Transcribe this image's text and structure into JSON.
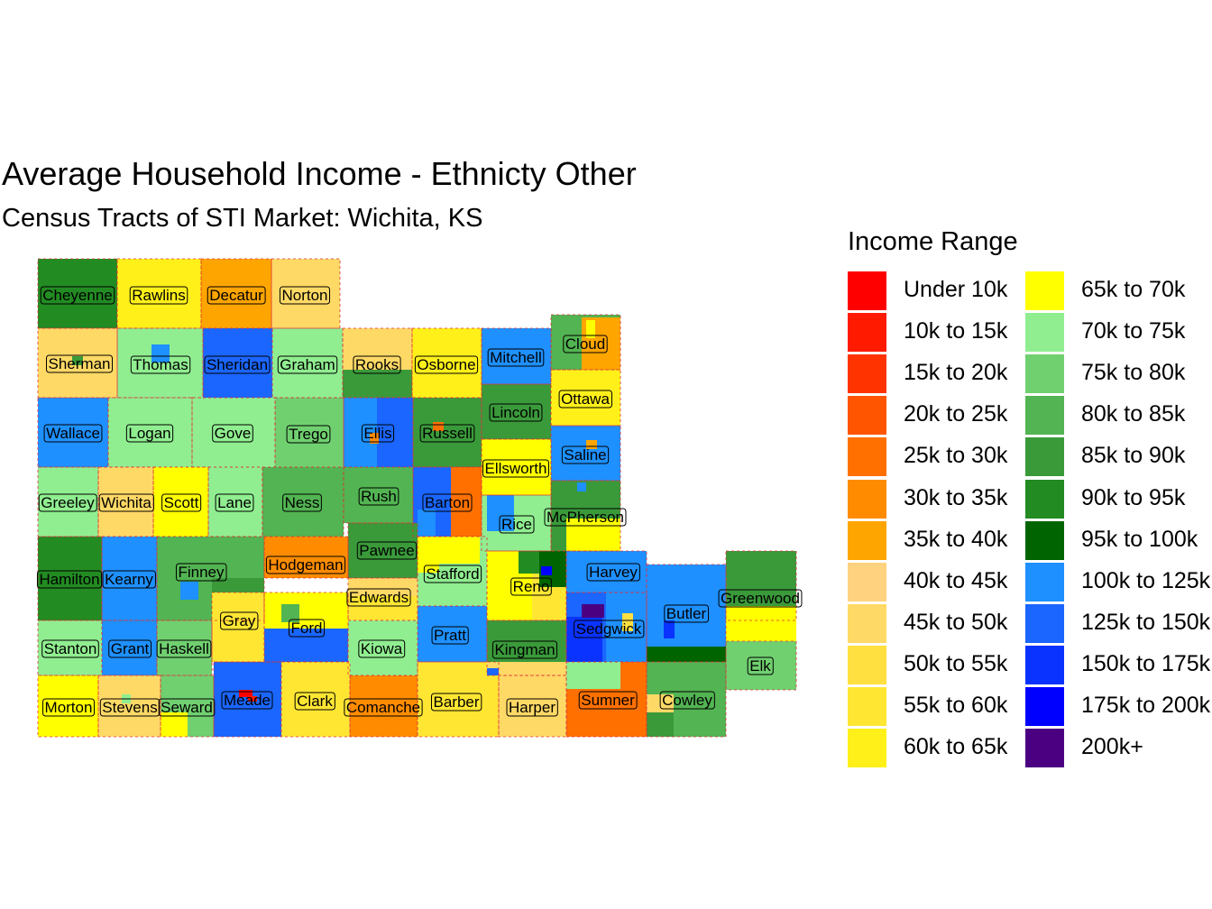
{
  "title": "Average Household Income - Ethnicty Other",
  "subtitle": "Census Tracts of STI Market: Wichita, KS",
  "legend": {
    "title": "Income Range",
    "items": [
      {
        "label": "Under 10k",
        "color": "#FF0000"
      },
      {
        "label": "10k to 15k",
        "color": "#FF1A00"
      },
      {
        "label": "15k to 20k",
        "color": "#FF3300"
      },
      {
        "label": "20k to 25k",
        "color": "#FF5500"
      },
      {
        "label": "25k to 30k",
        "color": "#FF7000"
      },
      {
        "label": "30k to 35k",
        "color": "#FF8C00"
      },
      {
        "label": "35k to 40k",
        "color": "#FFA500"
      },
      {
        "label": "40k to 45k",
        "color": "#FFD27F"
      },
      {
        "label": "45k to 50k",
        "color": "#FFD966"
      },
      {
        "label": "50k to 55k",
        "color": "#FFE040"
      },
      {
        "label": "55k to 60k",
        "color": "#FFE633"
      },
      {
        "label": "60k to 65k",
        "color": "#FFF01A"
      },
      {
        "label": "65k to 70k",
        "color": "#FFFF00"
      },
      {
        "label": "70k to 75k",
        "color": "#90EE90"
      },
      {
        "label": "75k to 80k",
        "color": "#70D070"
      },
      {
        "label": "80k to 85k",
        "color": "#52B452"
      },
      {
        "label": "85k to 90k",
        "color": "#3A9A3A"
      },
      {
        "label": "90k to 95k",
        "color": "#228B22"
      },
      {
        "label": "95k to 100k",
        "color": "#006400"
      },
      {
        "label": "100k to 125k",
        "color": "#1E90FF"
      },
      {
        "label": "125k to 150k",
        "color": "#1A66FF"
      },
      {
        "label": "150k to 175k",
        "color": "#0A33FF"
      },
      {
        "label": "175k to 200k",
        "color": "#0000FF"
      },
      {
        "label": "200k+",
        "color": "#4B0082"
      }
    ]
  },
  "counties": [
    {
      "name": "Cheyenne",
      "color": "#228B22"
    },
    {
      "name": "Rawlins",
      "color": "#FFF01A"
    },
    {
      "name": "Decatur",
      "color": "#FFA500"
    },
    {
      "name": "Norton",
      "color": "#FFD966"
    },
    {
      "name": "Sherman",
      "color": "#FFD966"
    },
    {
      "name": "Thomas",
      "color": "#90EE90"
    },
    {
      "name": "Sheridan",
      "color": "#1A66FF"
    },
    {
      "name": "Graham",
      "color": "#90EE90"
    },
    {
      "name": "Rooks",
      "color": "#FFD966"
    },
    {
      "name": "Osborne",
      "color": "#FFF01A"
    },
    {
      "name": "Mitchell",
      "color": "#1E90FF"
    },
    {
      "name": "Cloud",
      "color": "#52B452"
    },
    {
      "name": "Wallace",
      "color": "#1E90FF"
    },
    {
      "name": "Logan",
      "color": "#90EE90"
    },
    {
      "name": "Gove",
      "color": "#90EE90"
    },
    {
      "name": "Trego",
      "color": "#70D070"
    },
    {
      "name": "Ellis",
      "color": "#1E90FF"
    },
    {
      "name": "Russell",
      "color": "#3A9A3A"
    },
    {
      "name": "Lincoln",
      "color": "#3A9A3A"
    },
    {
      "name": "Ottawa",
      "color": "#FFF01A"
    },
    {
      "name": "Ellsworth",
      "color": "#FFFF00"
    },
    {
      "name": "Saline",
      "color": "#1E90FF"
    },
    {
      "name": "Greeley",
      "color": "#90EE90"
    },
    {
      "name": "Wichita",
      "color": "#FFD966"
    },
    {
      "name": "Scott",
      "color": "#FFFF00"
    },
    {
      "name": "Lane",
      "color": "#90EE90"
    },
    {
      "name": "Ness",
      "color": "#52B452"
    },
    {
      "name": "Rush",
      "color": "#52B452"
    },
    {
      "name": "Barton",
      "color": "#1A66FF"
    },
    {
      "name": "Rice",
      "color": "#90EE90"
    },
    {
      "name": "McPherson",
      "color": "#3A9A3A"
    },
    {
      "name": "Hamilton",
      "color": "#228B22"
    },
    {
      "name": "Kearny",
      "color": "#1E90FF"
    },
    {
      "name": "Finney",
      "color": "#52B452"
    },
    {
      "name": "Hodgeman",
      "color": "#FF8C00"
    },
    {
      "name": "Pawnee",
      "color": "#3A9A3A"
    },
    {
      "name": "Stafford",
      "color": "#90EE90"
    },
    {
      "name": "Edwards",
      "color": "#FFE633"
    },
    {
      "name": "Reno",
      "color": "#FFE633"
    },
    {
      "name": "Harvey",
      "color": "#1E90FF"
    },
    {
      "name": "Greenwood",
      "color": "#3A9A3A"
    },
    {
      "name": "Stanton",
      "color": "#90EE90"
    },
    {
      "name": "Grant",
      "color": "#1E90FF"
    },
    {
      "name": "Haskell",
      "color": "#70D070"
    },
    {
      "name": "Gray",
      "color": "#FFFF00"
    },
    {
      "name": "Ford",
      "color": "#1A66FF"
    },
    {
      "name": "Kiowa",
      "color": "#90EE90"
    },
    {
      "name": "Pratt",
      "color": "#1E90FF"
    },
    {
      "name": "Kingman",
      "color": "#3A9A3A"
    },
    {
      "name": "Sedgwick",
      "color": "#1A66FF"
    },
    {
      "name": "Butler",
      "color": "#1E90FF"
    },
    {
      "name": "Elk",
      "color": "#70D070"
    },
    {
      "name": "Morton",
      "color": "#FFFF00"
    },
    {
      "name": "Stevens",
      "color": "#FFD966"
    },
    {
      "name": "Seward",
      "color": "#70D070"
    },
    {
      "name": "Meade",
      "color": "#1A66FF"
    },
    {
      "name": "Clark",
      "color": "#FFE633"
    },
    {
      "name": "Comanche",
      "color": "#FF8C00"
    },
    {
      "name": "Barber",
      "color": "#FFE633"
    },
    {
      "name": "Harper",
      "color": "#FFD966"
    },
    {
      "name": "Sumner",
      "color": "#FF7000"
    },
    {
      "name": "Cowley",
      "color": "#52B452"
    }
  ]
}
